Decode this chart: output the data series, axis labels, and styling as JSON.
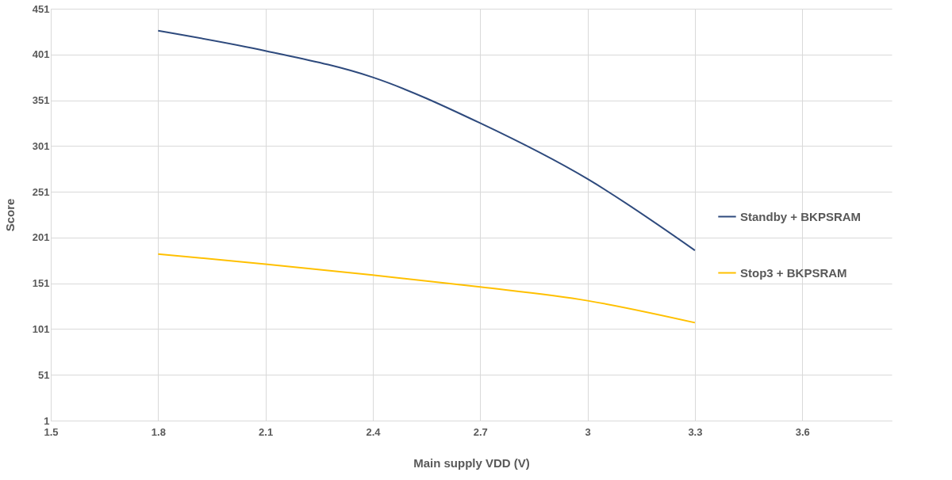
{
  "chart_data": {
    "type": "line",
    "xlabel": "Main supply VDD (V)",
    "ylabel": "Score",
    "x": [
      1.8,
      2.1,
      2.4,
      2.7,
      3.0,
      3.3
    ],
    "series": [
      {
        "name": "Standby + BKPSRAM",
        "color": "#2e4a7d",
        "values": [
          427,
          405,
          376,
          326,
          265,
          187
        ]
      },
      {
        "name": "Stop3 + BKPSRAM",
        "color": "#ffc000",
        "values": [
          183,
          172,
          160,
          147,
          132,
          108
        ]
      }
    ],
    "xlim": [
      1.5,
      3.85
    ],
    "xticks": [
      1.5,
      1.8,
      2.1,
      2.4,
      2.7,
      3,
      3.3,
      3.6
    ],
    "ylim": [
      1,
      451
    ],
    "yticks": [
      1,
      51,
      101,
      151,
      201,
      251,
      301,
      351,
      401,
      451
    ],
    "grid": true,
    "legend": "right",
    "marker": "none",
    "line_style": "solid"
  }
}
